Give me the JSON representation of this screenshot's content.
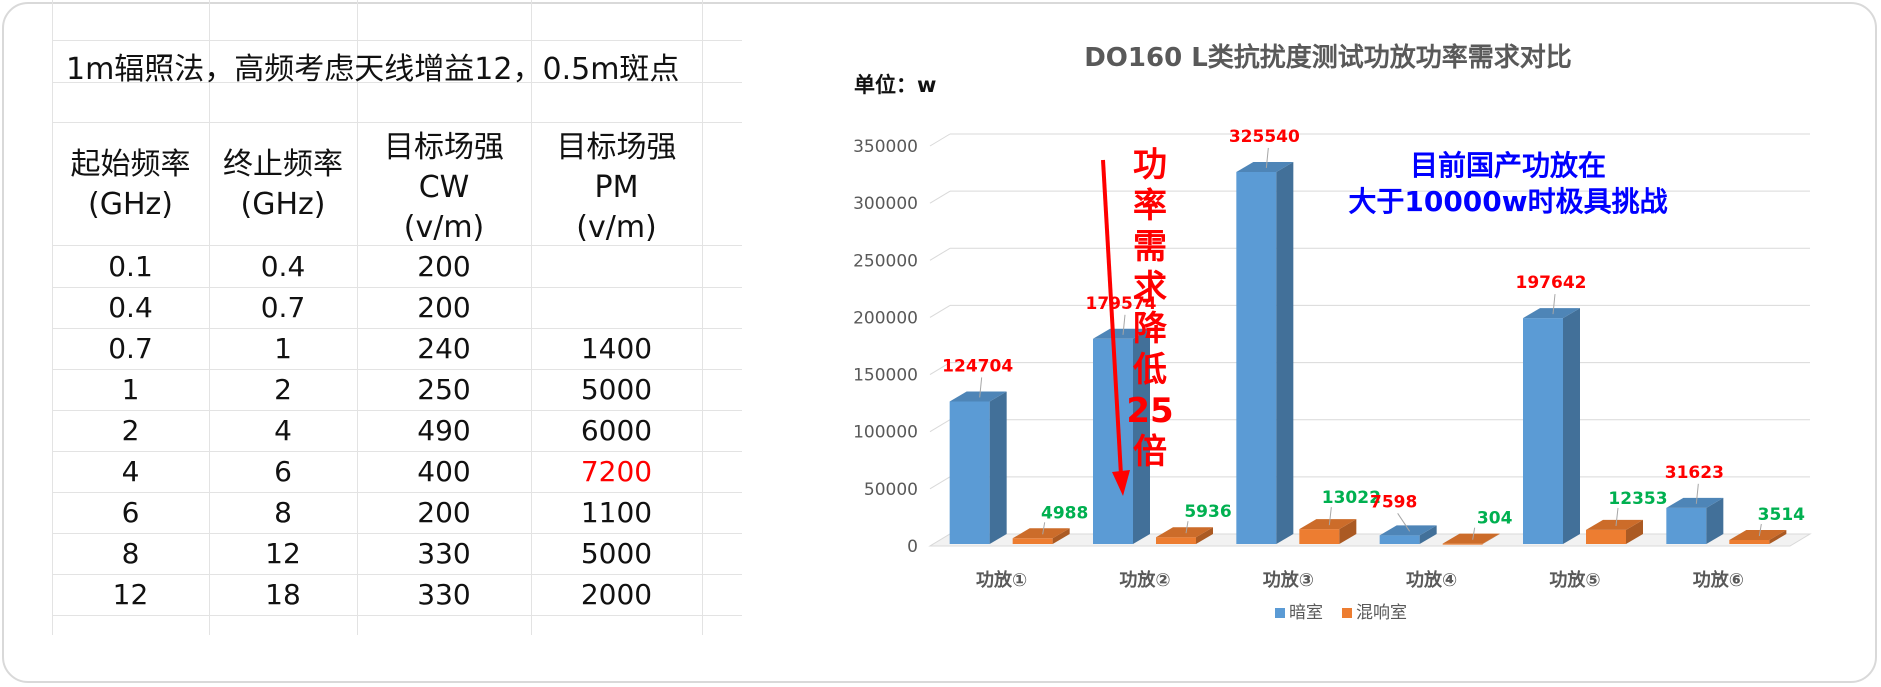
{
  "table": {
    "title": "1m辐照法，高频考虑天线增益12，0.5m斑点",
    "headers": [
      [
        "起始频率",
        "(GHz)"
      ],
      [
        "终止频率",
        "(GHz)"
      ],
      [
        "目标场强",
        "CW",
        "(v/m)"
      ],
      [
        "目标场强",
        "PM",
        "(v/m)"
      ]
    ],
    "rows": [
      [
        "0.1",
        "0.4",
        "200",
        ""
      ],
      [
        "0.4",
        "0.7",
        "200",
        ""
      ],
      [
        "0.7",
        "1",
        "240",
        "1400"
      ],
      [
        "1",
        "2",
        "250",
        "5000"
      ],
      [
        "2",
        "4",
        "490",
        "6000"
      ],
      [
        "4",
        "6",
        "400",
        "7200"
      ],
      [
        "6",
        "8",
        "200",
        "1100"
      ],
      [
        "8",
        "12",
        "330",
        "5000"
      ],
      [
        "12",
        "18",
        "330",
        "2000"
      ]
    ],
    "highlight_color": "#ff0000",
    "highlight_cell": [
      5,
      3
    ]
  },
  "chart_data": {
    "type": "bar",
    "title": "DO160 L类抗扰度测试功放功率需求对比",
    "ylabel": "单位：w",
    "categories": [
      "功放①",
      "功放②",
      "功放③",
      "功放④",
      "功放⑤",
      "功放⑥"
    ],
    "series": [
      {
        "name": "暗室",
        "values": [
          124704,
          179574,
          325540,
          7598,
          197642,
          31623
        ],
        "color": "#5b9bd5",
        "label_color": "#ff0000"
      },
      {
        "name": "混响室",
        "values": [
          4988,
          5936,
          13022,
          304,
          12353,
          3514
        ],
        "color": "#ed7d31",
        "label_color": "#00b050"
      }
    ],
    "ylim": [
      0,
      350000
    ],
    "yticks": [
      0,
      50000,
      100000,
      150000,
      200000,
      250000,
      300000,
      350000
    ],
    "grid": true,
    "legend": "bottom",
    "annotations": {
      "reduction_text": "功率需求降低25倍",
      "reduction_color": "#ff0000",
      "note_line1": "目前国产功放在",
      "note_line2": "大于10000w时极具挑战",
      "note_color": "#0000ff"
    }
  }
}
